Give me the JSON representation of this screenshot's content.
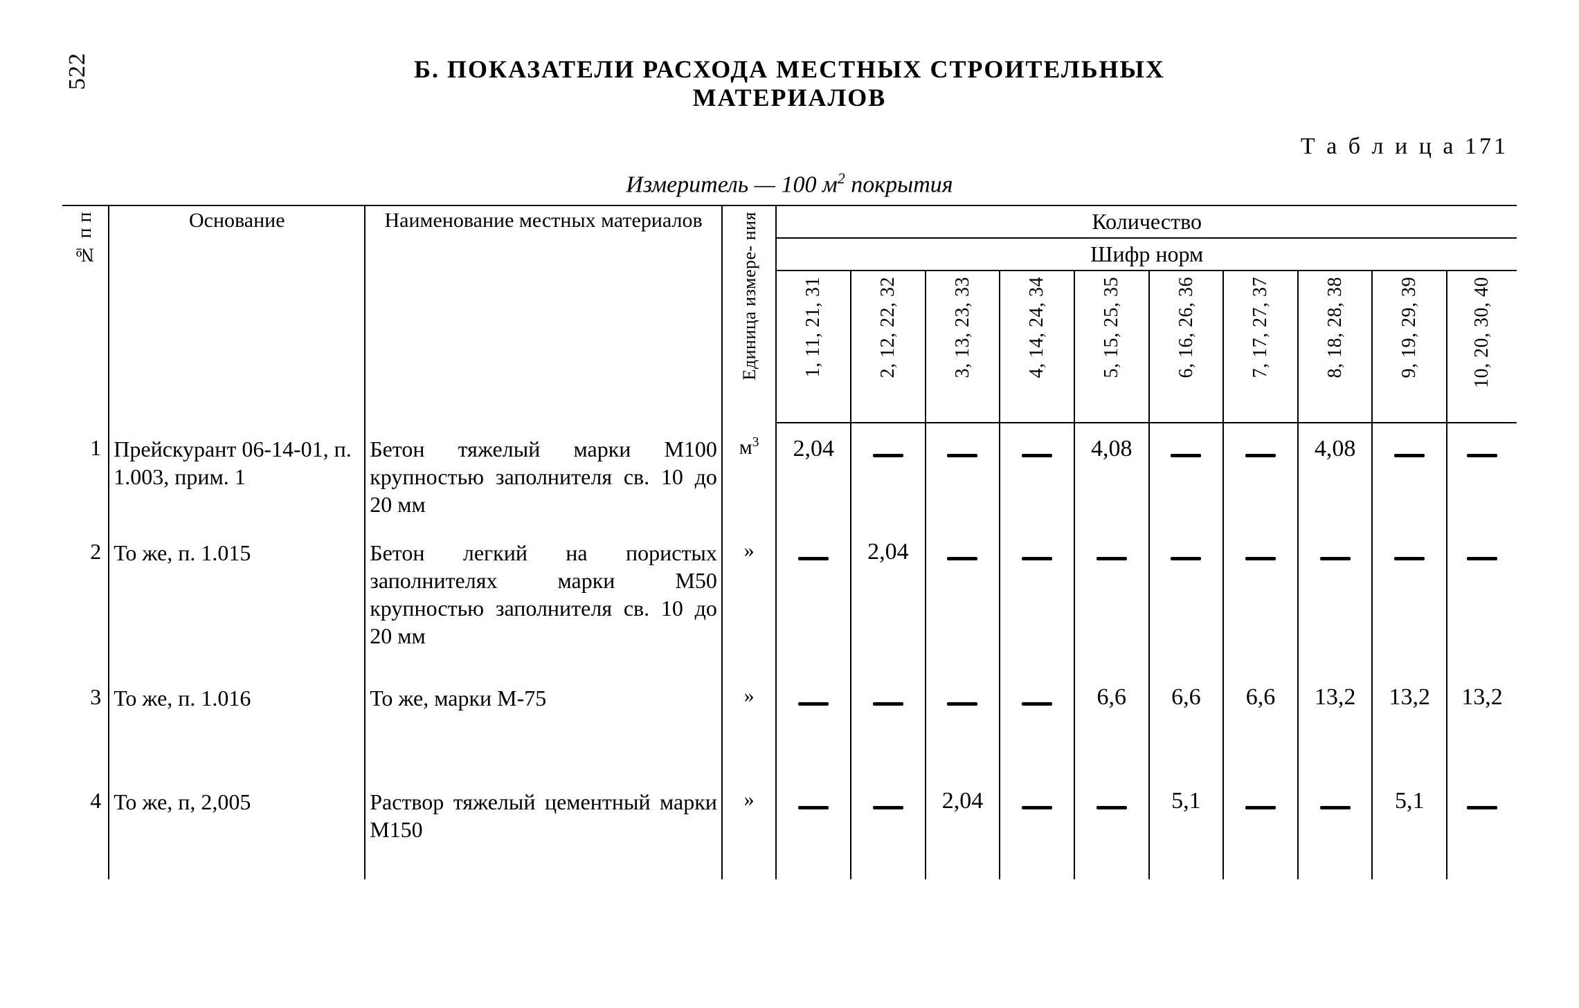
{
  "page_number_side": "522",
  "title": "Б. ПОКАЗАТЕЛИ РАСХОДА МЕСТНЫХ СТРОИТЕЛЬНЫХ\nМАТЕРИАЛОВ",
  "table_label": "Т а б л и ц а  171",
  "subtitle_prefix": "Измеритель — 100 м",
  "subtitle_sup": "2",
  "subtitle_suffix": " покрытия",
  "headers": {
    "num": "№ п п",
    "basis": "Основание",
    "name": "Наименование местных материалов",
    "unit": "Единица измере-\nния",
    "qty": "Количество",
    "codes": "Шифр норм",
    "cols": [
      "1, 11, 21,\n31",
      "2, 12, 22,\n32",
      "3, 13, 23,\n33",
      "4, 14, 24,\n34",
      "5, 15, 25,\n35",
      "6, 16, 26,\n36",
      "7, 17, 27,\n37",
      "8, 18, 28,\n38",
      "9, 19, 29,\n39",
      "10, 20,\n30, 40"
    ]
  },
  "unit_label_m3": "м³",
  "unit_label_ditto": "»",
  "rows": [
    {
      "num": "1",
      "basis": "Прейскурант 06-14-01, п. 1.003, прим. 1",
      "name": "Бетон тяжелый марки М100 крупностью заполнителя св. 10 до 20 мм",
      "unit": "м³",
      "vals": [
        "2,04",
        "—",
        "—",
        "—",
        "4,08",
        "—",
        "—",
        "4,08",
        "—",
        "—"
      ]
    },
    {
      "num": "2",
      "basis": "То же, п. 1.015",
      "name": "Бетон легкий на пористых заполнителях марки М50 крупностью заполнителя св. 10 до 20 мм",
      "unit": "»",
      "vals": [
        "—",
        "2,04",
        "—",
        "—",
        "—",
        "—",
        "—",
        "—",
        "—",
        "—"
      ]
    },
    {
      "num": "3",
      "basis": "То же, п. 1.016",
      "name": "То же, марки М-75",
      "unit": "»",
      "vals": [
        "—",
        "—",
        "—",
        "—",
        "6,6",
        "6,6",
        "6,6",
        "13,2",
        "13,2",
        "13,2"
      ]
    },
    {
      "num": "4",
      "basis": "То же, п, 2,005",
      "name": "Раствор тяжелый цемент­ный марки М150",
      "unit": "»",
      "vals": [
        "—",
        "—",
        "2,04",
        "—",
        "—",
        "5,1",
        "—",
        "—",
        "5,1",
        "—"
      ]
    }
  ],
  "colors": {
    "text": "#000000",
    "background": "#ffffff",
    "rule": "#000000"
  }
}
